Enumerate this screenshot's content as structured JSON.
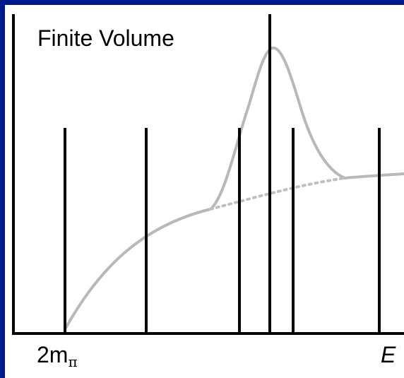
{
  "title": "Finite Volume",
  "threshold_label": "2m",
  "threshold_subscript": "π",
  "energy_axis_label": "E",
  "colors": {
    "border": "#001a8c",
    "background": "#ffffff",
    "axes": "#000000",
    "spectrum_lines": "#000000",
    "curve": "#b8b8b4",
    "curve_dotted": "#c0c0bc"
  },
  "elements": {
    "finite_volume_levels": 6,
    "resonance_peak": true,
    "dotted_background_continuation": true
  }
}
